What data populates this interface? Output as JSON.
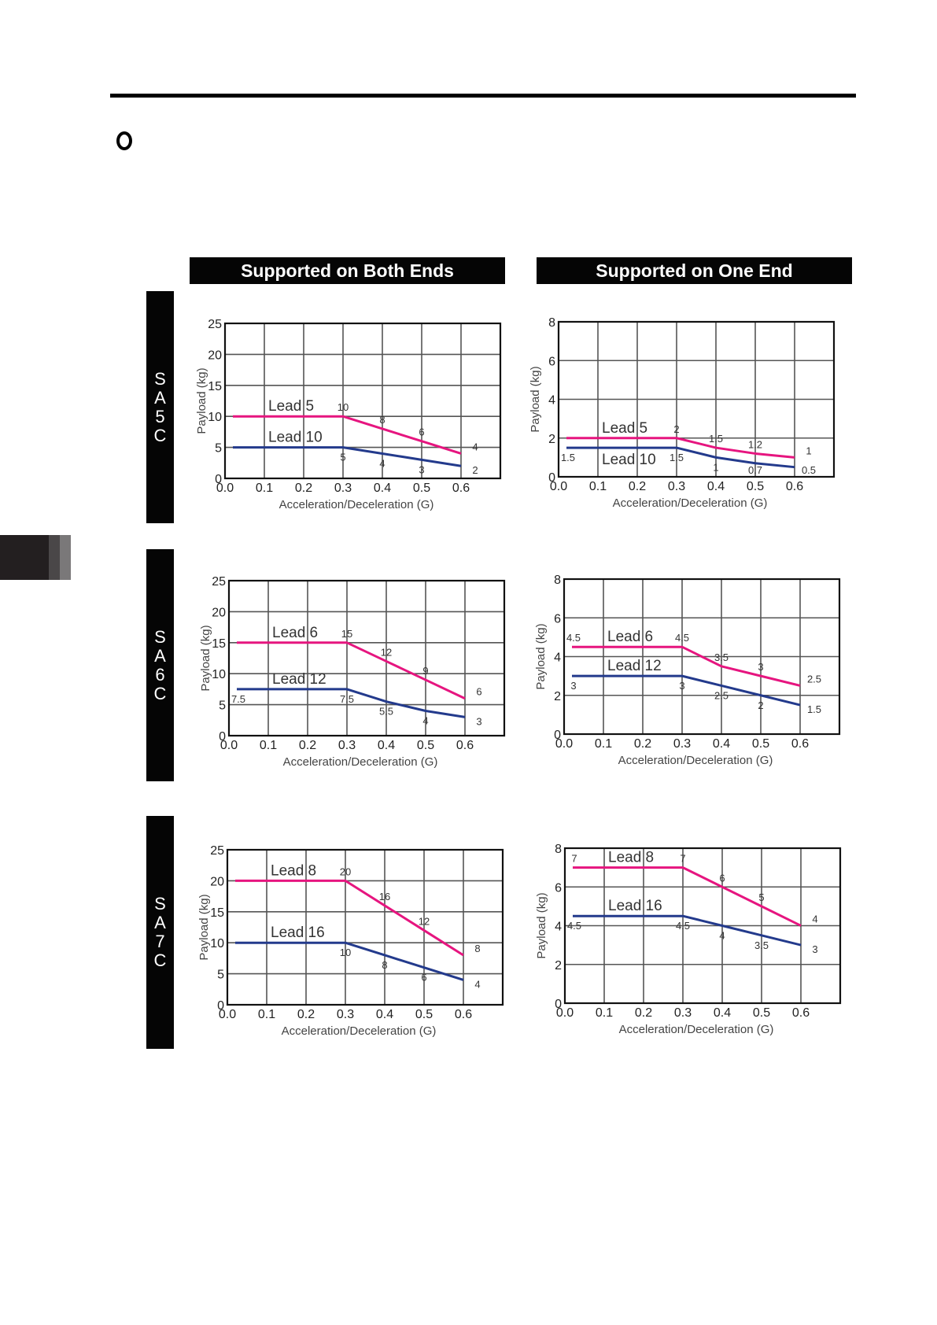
{
  "headers": {
    "both_ends": "Supported on Both Ends",
    "one_end": "Supported on One End"
  },
  "row_labels": [
    "SA5C",
    "SA6C",
    "SA7C"
  ],
  "colors": {
    "upper_series": "#e6157f",
    "lower_series": "#233a8c"
  },
  "chart_data": [
    {
      "type": "line",
      "model": "SA5C",
      "support": "Both Ends",
      "xlabel": "Acceleration/Deceleration (G)",
      "ylabel": "Payload (kg)",
      "xlim": [
        0,
        0.7
      ],
      "ylim": [
        0,
        25
      ],
      "xticks": [
        "0.0",
        "0.1",
        "0.2",
        "0.3",
        "0.4",
        "0.5",
        "0.6"
      ],
      "yticks": [
        "0",
        "5",
        "10",
        "15",
        "20",
        "25"
      ],
      "x": [
        0.02,
        0.3,
        0.4,
        0.5,
        0.6
      ],
      "series": [
        {
          "name": "Lead 5",
          "values": [
            10,
            10,
            8,
            6,
            4
          ],
          "labels": [
            null,
            "10",
            "8",
            "6",
            "4"
          ]
        },
        {
          "name": "Lead 10",
          "values": [
            5,
            5,
            4,
            3,
            2
          ],
          "labels": [
            null,
            "5",
            "4",
            "3",
            "2"
          ]
        }
      ]
    },
    {
      "type": "line",
      "model": "SA5C",
      "support": "One End",
      "xlabel": "Acceleration/Deceleration (G)",
      "ylabel": "Payload (kg)",
      "xlim": [
        0,
        0.7
      ],
      "ylim": [
        0,
        8
      ],
      "xticks": [
        "0.0",
        "0.1",
        "0.2",
        "0.3",
        "0.4",
        "0.5",
        "0.6"
      ],
      "yticks": [
        "0",
        "2",
        "4",
        "6",
        "8"
      ],
      "x": [
        0.02,
        0.3,
        0.4,
        0.5,
        0.6
      ],
      "series": [
        {
          "name": "Lead 5",
          "values": [
            2,
            2,
            1.5,
            1.2,
            1
          ],
          "labels": [
            null,
            "2",
            "1.5",
            "1.2",
            "1"
          ]
        },
        {
          "name": "Lead 10",
          "values": [
            1.5,
            1.5,
            1,
            0.7,
            0.5
          ],
          "labels": [
            "1.5",
            "1.5",
            "1",
            "0.7",
            "0.5"
          ]
        }
      ]
    },
    {
      "type": "line",
      "model": "SA6C",
      "support": "Both Ends",
      "xlabel": "Acceleration/Deceleration (G)",
      "ylabel": "Payload (kg)",
      "xlim": [
        0,
        0.7
      ],
      "ylim": [
        0,
        25
      ],
      "xticks": [
        "0.0",
        "0.1",
        "0.2",
        "0.3",
        "0.4",
        "0.5",
        "0.6"
      ],
      "yticks": [
        "0",
        "5",
        "10",
        "15",
        "20",
        "25"
      ],
      "x": [
        0.02,
        0.3,
        0.4,
        0.5,
        0.6
      ],
      "series": [
        {
          "name": "Lead 6",
          "values": [
            15,
            15,
            12,
            9,
            6
          ],
          "labels": [
            null,
            "15",
            "12",
            "9",
            "6"
          ]
        },
        {
          "name": "Lead 12",
          "values": [
            7.5,
            7.5,
            5.5,
            4,
            3
          ],
          "labels": [
            "7.5",
            "7.5",
            "5.5",
            "4",
            "3"
          ]
        }
      ]
    },
    {
      "type": "line",
      "model": "SA6C",
      "support": "One End",
      "xlabel": "Acceleration/Deceleration (G)",
      "ylabel": "Payload (kg)",
      "xlim": [
        0,
        0.7
      ],
      "ylim": [
        0,
        8
      ],
      "xticks": [
        "0.0",
        "0.1",
        "0.2",
        "0.3",
        "0.4",
        "0.5",
        "0.6"
      ],
      "yticks": [
        "0",
        "2",
        "4",
        "6",
        "8"
      ],
      "x": [
        0.02,
        0.3,
        0.4,
        0.5,
        0.6
      ],
      "series": [
        {
          "name": "Lead 6",
          "values": [
            4.5,
            4.5,
            3.5,
            3,
            2.5
          ],
          "labels": [
            "4.5",
            "4.5",
            "3.5",
            "3",
            "2.5"
          ]
        },
        {
          "name": "Lead 12",
          "values": [
            3,
            3,
            2.5,
            2,
            1.5
          ],
          "labels": [
            "3",
            "3",
            "2.5",
            "2",
            "1.5"
          ]
        }
      ]
    },
    {
      "type": "line",
      "model": "SA7C",
      "support": "Both Ends",
      "xlabel": "Acceleration/Deceleration (G)",
      "ylabel": "Payload (kg)",
      "xlim": [
        0,
        0.7
      ],
      "ylim": [
        0,
        25
      ],
      "xticks": [
        "0.0",
        "0.1",
        "0.2",
        "0.3",
        "0.4",
        "0.5",
        "0.6"
      ],
      "yticks": [
        "0",
        "5",
        "10",
        "15",
        "20",
        "25"
      ],
      "x": [
        0.02,
        0.3,
        0.4,
        0.5,
        0.6
      ],
      "series": [
        {
          "name": "Lead 8",
          "values": [
            20,
            20,
            16,
            12,
            8
          ],
          "labels": [
            null,
            "20",
            "16",
            "12",
            "8"
          ]
        },
        {
          "name": "Lead 16",
          "values": [
            10,
            10,
            8,
            6,
            4
          ],
          "labels": [
            null,
            "10",
            "8",
            "6",
            "4"
          ]
        }
      ]
    },
    {
      "type": "line",
      "model": "SA7C",
      "support": "One End",
      "xlabel": "Acceleration/Deceleration (G)",
      "ylabel": "Payload (kg)",
      "xlim": [
        0,
        0.7
      ],
      "ylim": [
        0,
        8
      ],
      "xticks": [
        "0.0",
        "0.1",
        "0.2",
        "0.3",
        "0.4",
        "0.5",
        "0.6"
      ],
      "yticks": [
        "0",
        "2",
        "4",
        "6",
        "8"
      ],
      "x": [
        0.02,
        0.3,
        0.4,
        0.5,
        0.6
      ],
      "series": [
        {
          "name": "Lead 8",
          "values": [
            7,
            7,
            6,
            5,
            4
          ],
          "labels": [
            "7",
            "7",
            "6",
            "5",
            "4"
          ]
        },
        {
          "name": "Lead 16",
          "values": [
            4.5,
            4.5,
            4,
            3.5,
            3
          ],
          "labels": [
            "4.5",
            "4.5",
            "4",
            "3.5",
            "3"
          ]
        }
      ]
    }
  ]
}
